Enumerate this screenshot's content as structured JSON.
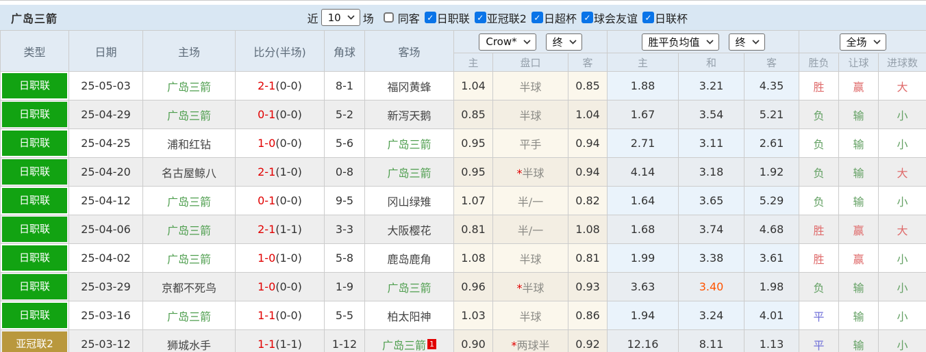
{
  "header": {
    "title": "广岛三箭",
    "recent_label": "近",
    "recent_value": "10",
    "matches_label": "场",
    "same_venue": {
      "label": "同客",
      "checked": false
    },
    "leagues": [
      {
        "label": "日职联",
        "checked": true
      },
      {
        "label": "亚冠联2",
        "checked": true
      },
      {
        "label": "日超杯",
        "checked": true
      },
      {
        "label": "球会友谊",
        "checked": true
      },
      {
        "label": "日联杯",
        "checked": true
      }
    ]
  },
  "table": {
    "columns": [
      "类型",
      "日期",
      "主场",
      "比分(半场)",
      "角球",
      "客场"
    ],
    "selects": {
      "asian_source": "Crow*",
      "asian_time": "终",
      "europe_source": "胜平负均值",
      "europe_time": "终",
      "scope": "全场"
    },
    "subheaders": [
      "主",
      "盘口",
      "客",
      "主",
      "和",
      "客",
      "胜负",
      "让球",
      "进球数"
    ],
    "rows": [
      {
        "league": "日职联",
        "league_color": "green",
        "date": "25-05-03",
        "home": {
          "name": "广岛三箭",
          "highlight": true,
          "badge": ""
        },
        "score": {
          "full": "2-1",
          "half": "(0-0)"
        },
        "corners": "8-1",
        "away": {
          "name": "福冈黄蜂",
          "highlight": false,
          "badge": ""
        },
        "asian": {
          "home": "1.04",
          "handicap": "半球",
          "star": false,
          "away": "0.85"
        },
        "europe": {
          "home": "1.88",
          "draw": "3.21",
          "away": "4.35",
          "draw_highlight": false
        },
        "results": {
          "outcome": {
            "text": "胜",
            "color": "red"
          },
          "handicap": {
            "text": "赢",
            "color": "red"
          },
          "goals": {
            "text": "大",
            "color": "red"
          }
        }
      },
      {
        "league": "日职联",
        "league_color": "green",
        "date": "25-04-29",
        "home": {
          "name": "广岛三箭",
          "highlight": true,
          "badge": ""
        },
        "score": {
          "full": "0-1",
          "half": "(0-0)"
        },
        "corners": "5-2",
        "away": {
          "name": "新泻天鹅",
          "highlight": false,
          "badge": ""
        },
        "asian": {
          "home": "0.85",
          "handicap": "半球",
          "star": false,
          "away": "1.04"
        },
        "europe": {
          "home": "1.67",
          "draw": "3.54",
          "away": "5.21",
          "draw_highlight": false
        },
        "results": {
          "outcome": {
            "text": "负",
            "color": "green"
          },
          "handicap": {
            "text": "输",
            "color": "green"
          },
          "goals": {
            "text": "小",
            "color": "green"
          }
        }
      },
      {
        "league": "日职联",
        "league_color": "green",
        "date": "25-04-25",
        "home": {
          "name": "浦和红钻",
          "highlight": false,
          "badge": ""
        },
        "score": {
          "full": "1-0",
          "half": "(0-0)"
        },
        "corners": "5-6",
        "away": {
          "name": "广岛三箭",
          "highlight": true,
          "badge": ""
        },
        "asian": {
          "home": "0.95",
          "handicap": "平手",
          "star": false,
          "away": "0.94"
        },
        "europe": {
          "home": "2.71",
          "draw": "3.11",
          "away": "2.61",
          "draw_highlight": false
        },
        "results": {
          "outcome": {
            "text": "负",
            "color": "green"
          },
          "handicap": {
            "text": "输",
            "color": "green"
          },
          "goals": {
            "text": "小",
            "color": "green"
          }
        }
      },
      {
        "league": "日职联",
        "league_color": "green",
        "date": "25-04-20",
        "home": {
          "name": "名古屋鲸八",
          "highlight": false,
          "badge": ""
        },
        "score": {
          "full": "2-1",
          "half": "(1-0)"
        },
        "corners": "0-8",
        "away": {
          "name": "广岛三箭",
          "highlight": true,
          "badge": ""
        },
        "asian": {
          "home": "0.95",
          "handicap": "半球",
          "star": true,
          "away": "0.94"
        },
        "europe": {
          "home": "4.14",
          "draw": "3.18",
          "away": "1.92",
          "draw_highlight": false
        },
        "results": {
          "outcome": {
            "text": "负",
            "color": "green"
          },
          "handicap": {
            "text": "输",
            "color": "green"
          },
          "goals": {
            "text": "大",
            "color": "red"
          }
        }
      },
      {
        "league": "日职联",
        "league_color": "green",
        "date": "25-04-12",
        "home": {
          "name": "广岛三箭",
          "highlight": true,
          "badge": ""
        },
        "score": {
          "full": "0-1",
          "half": "(0-0)"
        },
        "corners": "9-5",
        "away": {
          "name": "冈山绿雉",
          "highlight": false,
          "badge": ""
        },
        "asian": {
          "home": "1.07",
          "handicap": "半/一",
          "star": false,
          "away": "0.82"
        },
        "europe": {
          "home": "1.64",
          "draw": "3.65",
          "away": "5.29",
          "draw_highlight": false
        },
        "results": {
          "outcome": {
            "text": "负",
            "color": "green"
          },
          "handicap": {
            "text": "输",
            "color": "green"
          },
          "goals": {
            "text": "小",
            "color": "green"
          }
        }
      },
      {
        "league": "日职联",
        "league_color": "green",
        "date": "25-04-06",
        "home": {
          "name": "广岛三箭",
          "highlight": true,
          "badge": ""
        },
        "score": {
          "full": "2-1",
          "half": "(1-1)"
        },
        "corners": "3-3",
        "away": {
          "name": "大阪樱花",
          "highlight": false,
          "badge": ""
        },
        "asian": {
          "home": "0.81",
          "handicap": "半/一",
          "star": false,
          "away": "1.08"
        },
        "europe": {
          "home": "1.68",
          "draw": "3.74",
          "away": "4.68",
          "draw_highlight": false
        },
        "results": {
          "outcome": {
            "text": "胜",
            "color": "red"
          },
          "handicap": {
            "text": "赢",
            "color": "red"
          },
          "goals": {
            "text": "大",
            "color": "red"
          }
        }
      },
      {
        "league": "日职联",
        "league_color": "green",
        "date": "25-04-02",
        "home": {
          "name": "广岛三箭",
          "highlight": true,
          "badge": ""
        },
        "score": {
          "full": "1-0",
          "half": "(1-0)"
        },
        "corners": "5-8",
        "away": {
          "name": "鹿岛鹿角",
          "highlight": false,
          "badge": ""
        },
        "asian": {
          "home": "1.08",
          "handicap": "半球",
          "star": false,
          "away": "0.81"
        },
        "europe": {
          "home": "1.99",
          "draw": "3.38",
          "away": "3.61",
          "draw_highlight": false
        },
        "results": {
          "outcome": {
            "text": "胜",
            "color": "red"
          },
          "handicap": {
            "text": "赢",
            "color": "red"
          },
          "goals": {
            "text": "小",
            "color": "green"
          }
        }
      },
      {
        "league": "日职联",
        "league_color": "green",
        "date": "25-03-29",
        "home": {
          "name": "京都不死鸟",
          "highlight": false,
          "badge": ""
        },
        "score": {
          "full": "1-0",
          "half": "(0-0)"
        },
        "corners": "1-9",
        "away": {
          "name": "广岛三箭",
          "highlight": true,
          "badge": ""
        },
        "asian": {
          "home": "0.96",
          "handicap": "半球",
          "star": true,
          "away": "0.93"
        },
        "europe": {
          "home": "3.63",
          "draw": "3.40",
          "away": "1.98",
          "draw_highlight": true
        },
        "results": {
          "outcome": {
            "text": "负",
            "color": "green"
          },
          "handicap": {
            "text": "输",
            "color": "green"
          },
          "goals": {
            "text": "小",
            "color": "green"
          }
        }
      },
      {
        "league": "日职联",
        "league_color": "green",
        "date": "25-03-16",
        "home": {
          "name": "广岛三箭",
          "highlight": true,
          "badge": ""
        },
        "score": {
          "full": "1-1",
          "half": "(0-0)"
        },
        "corners": "5-5",
        "away": {
          "name": "柏太阳神",
          "highlight": false,
          "badge": ""
        },
        "asian": {
          "home": "1.03",
          "handicap": "半球",
          "star": false,
          "away": "0.86"
        },
        "europe": {
          "home": "1.94",
          "draw": "3.24",
          "away": "4.01",
          "draw_highlight": false
        },
        "results": {
          "outcome": {
            "text": "平",
            "color": "blue"
          },
          "handicap": {
            "text": "输",
            "color": "green"
          },
          "goals": {
            "text": "小",
            "color": "green"
          }
        }
      },
      {
        "league": "亚冠联2",
        "league_color": "gold",
        "date": "25-03-12",
        "home": {
          "name": "狮城水手",
          "highlight": false,
          "badge": ""
        },
        "score": {
          "full": "1-1",
          "half": "(1-1)"
        },
        "corners": "1-12",
        "away": {
          "name": "广岛三箭",
          "highlight": true,
          "badge": "1"
        },
        "asian": {
          "home": "0.90",
          "handicap": "两球半",
          "star": true,
          "away": "0.92"
        },
        "europe": {
          "home": "12.16",
          "draw": "8.11",
          "away": "1.13",
          "draw_highlight": false
        },
        "results": {
          "outcome": {
            "text": "平",
            "color": "blue"
          },
          "handicap": {
            "text": "输",
            "color": "green"
          },
          "goals": {
            "text": "小",
            "color": "green"
          }
        }
      }
    ]
  },
  "colors": {
    "league_green": "#12a312",
    "league_gold": "#b9983d",
    "team_highlight": "#4e9e4e",
    "score_red": "#e10000",
    "result_red": "#df6a6a",
    "result_green": "#64a164",
    "result_blue": "#7070d8",
    "odds_orange": "#ff5400",
    "titlebar_bg": "#d9e7f3",
    "header_bg": "#e2ebf4",
    "checkbox_blue": "#0a74e8"
  }
}
